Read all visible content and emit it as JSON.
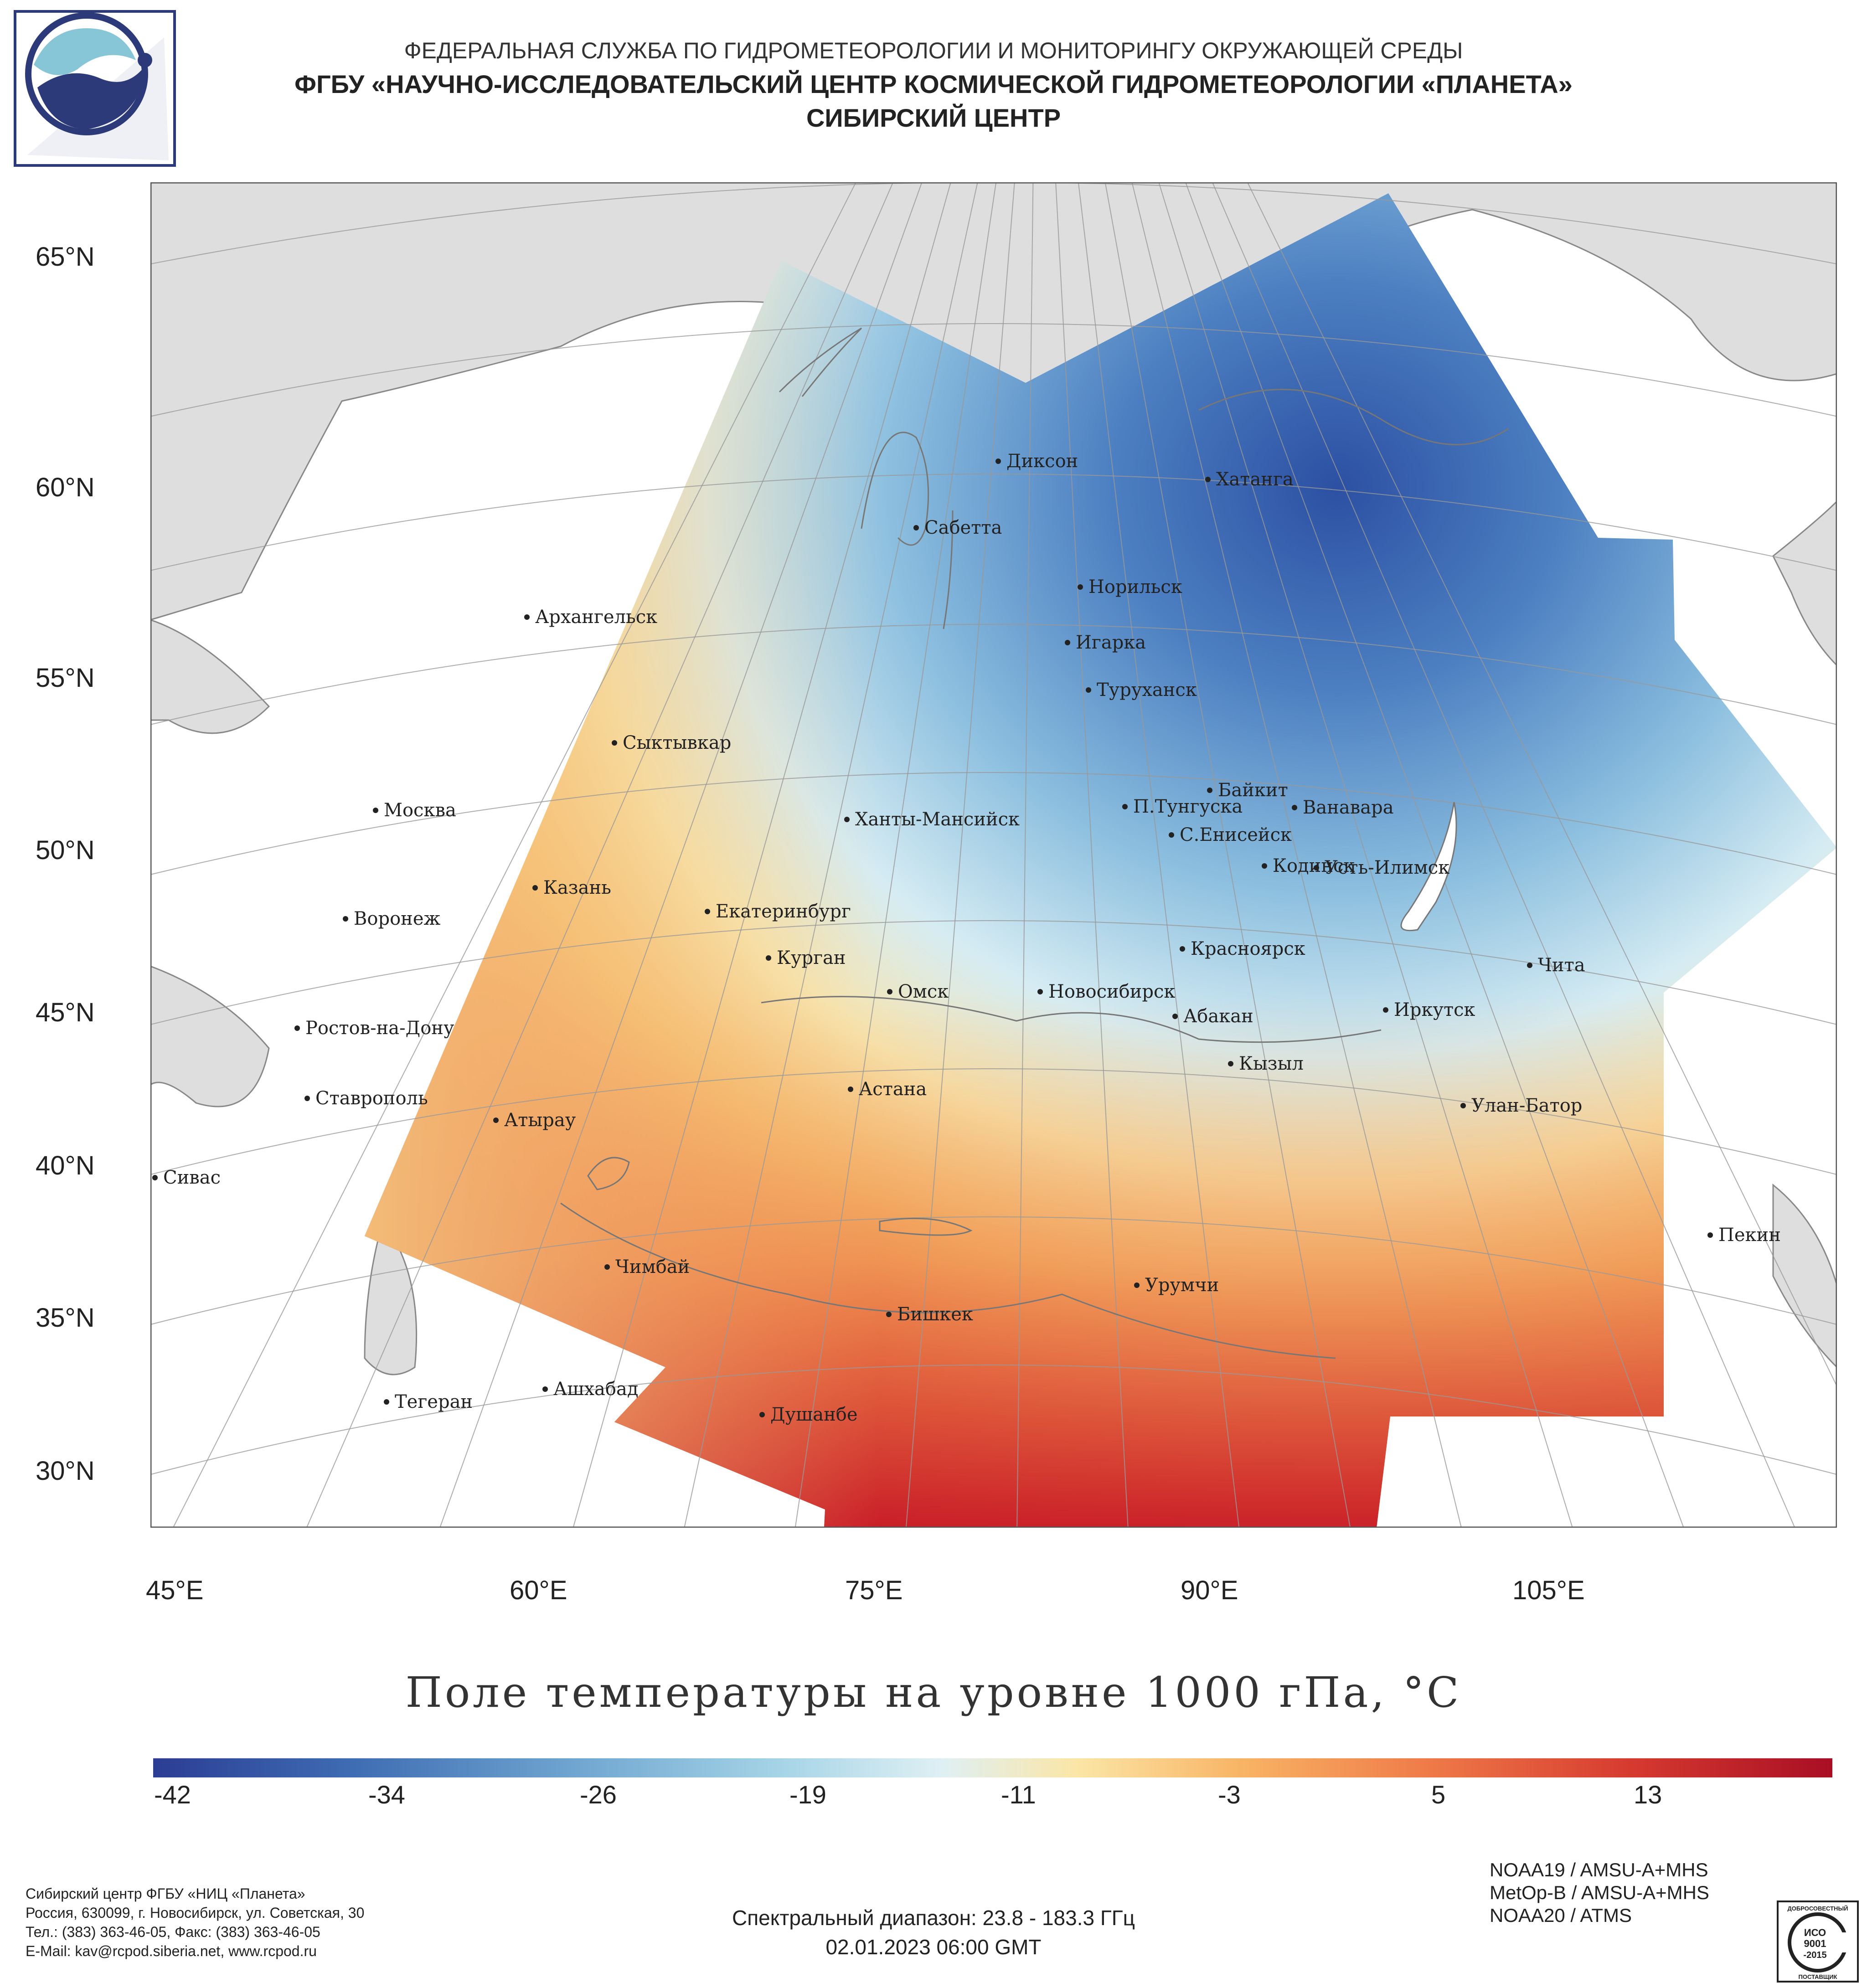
{
  "header": {
    "line1": "ФЕДЕРАЛЬНАЯ СЛУЖБА ПО ГИДРОМЕТЕОРОЛОГИИ И МОНИТОРИНГУ ОКРУЖАЮЩЕЙ СРЕДЫ",
    "line2": "ФГБУ «НАУЧНО-ИССЛЕДОВАТЕЛЬСКИЙ ЦЕНТР КОСМИЧЕСКОЙ ГИДРОМЕТЕОРОЛОГИИ «ПЛАНЕТА»",
    "line3": "СИБИРСКИЙ ЦЕНТР"
  },
  "map": {
    "lat_labels": [
      "65°N",
      "60°N",
      "55°N",
      "50°N",
      "45°N",
      "40°N",
      "35°N",
      "30°N"
    ],
    "lon_labels": [
      "45°E",
      "60°E",
      "75°E",
      "90°E",
      "105°E"
    ],
    "cities": [
      "Диксон",
      "Хатанга",
      "Сабетта",
      "Норильск",
      "Архангельск",
      "Игарка",
      "Туруханск",
      "Сыктывкар",
      "Москва",
      "Байкит",
      "Ханты-Мансийск",
      "П.Тунгуска",
      "Ванавара",
      "С.Енисейск",
      "Казань",
      "Кодинск",
      "Усть-Илимск",
      "Воронеж",
      "Екатеринбург",
      "Красноярск",
      "Курган",
      "Чита",
      "Омск",
      "Новосибирск",
      "Иркутск",
      "Абакан",
      "Ростов-на-Дону",
      "Кызыл",
      "Астана",
      "Ставрополь",
      "Улан-Батор",
      "Атырау",
      "Сивас",
      "Пекин",
      "Чимбай",
      "Урумчи",
      "Бишкек",
      "Ашхабад",
      "Тегеран",
      "Душанбе"
    ],
    "colors": {
      "land": "#dedede",
      "border": "#888888",
      "warm": "#c21a2a",
      "cold": "#2e4fa0"
    }
  },
  "legend": {
    "title": "Поле температуры на уровне 1000 гПа, °С",
    "ticks": [
      "-42",
      "-34",
      "-26",
      "-19",
      "-11",
      "-3",
      "5",
      "13"
    ]
  },
  "footer": {
    "org": [
      "Сибирский центр ФГБУ «НИЦ «Планета»",
      "Россия, 630099, г. Новосибирск, ул. Советская, 30",
      "Тел.: (383) 363-46-05, Факс: (383) 363-46-05",
      "E-Mail: kav@rcpod.siberia.net, www.rcpod.ru"
    ],
    "spectral": "Спектральный диапазон: 23.8 - 183.3 ГГц",
    "datetime": "02.01.2023 06:00 GMT",
    "satellites": [
      "NOAA19 / AMSU-A+MHS",
      "MetOp-B / AMSU-A+MHS",
      "NOAA20 / ATMS"
    ],
    "iso": {
      "top": "ДОБРОСОВЕСТНЫЙ",
      "mid1": "ИСО",
      "mid2": "9001",
      "mid3": "-2015",
      "bottom": "ПОСТАВЩИК"
    }
  }
}
